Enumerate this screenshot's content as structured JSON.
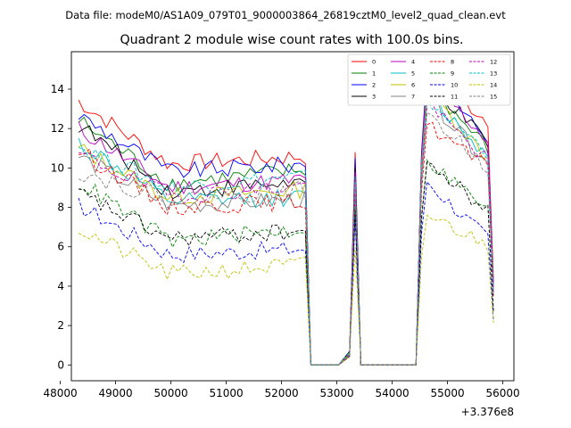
{
  "chart_data": {
    "type": "line",
    "suptitle": "Data file: modeM0/AS1A09_079T01_9000003864_26819cztM0_level2_quad_clean.evt",
    "title": "Quadrant 2 module wise count rates with 100.0s bins.",
    "xlabel": "",
    "ylabel": "",
    "x_offset_label": "+3.376e8",
    "xlim": [
      48200,
      56200
    ],
    "ylim": [
      -0.8,
      15.9
    ],
    "x_ticks": [
      48000,
      49000,
      50000,
      51000,
      52000,
      53000,
      54000,
      55000,
      56000
    ],
    "x_tick_labels": [
      "48000",
      "49000",
      "50000",
      "51000",
      "52000",
      "53000",
      "54000",
      "55000",
      "56000"
    ],
    "y_ticks": [
      0,
      2,
      4,
      6,
      8,
      10,
      12,
      14
    ],
    "y_tick_labels": [
      "0",
      "2",
      "4",
      "6",
      "8",
      "10",
      "12",
      "14"
    ],
    "legend_position": "upper right",
    "series": [
      {
        "name": "0",
        "color": "#ff0000",
        "dash": "solid",
        "start": 13.4,
        "level": 10.2,
        "end_level": 10.6,
        "spike": 10.8,
        "peak": 14.8,
        "tail": 12.4
      },
      {
        "name": "1",
        "color": "#008000",
        "dash": "solid",
        "start": 12.4,
        "level": 9.2,
        "end_level": 9.9,
        "spike": 9.0,
        "peak": 14.2,
        "tail": 11.0
      },
      {
        "name": "2",
        "color": "#0000ff",
        "dash": "solid",
        "start": 12.7,
        "level": 9.8,
        "end_level": 10.2,
        "spike": 10.5,
        "peak": 15.0,
        "tail": 11.5
      },
      {
        "name": "3",
        "color": "#000000",
        "dash": "solid",
        "start": 12.2,
        "level": 8.8,
        "end_level": 9.3,
        "spike": 10.0,
        "peak": 14.5,
        "tail": 11.2
      },
      {
        "name": "4",
        "color": "#bf00bf",
        "dash": "solid",
        "start": 12.0,
        "level": 9.0,
        "end_level": 9.4,
        "spike": 9.8,
        "peak": 14.6,
        "tail": 11.4
      },
      {
        "name": "5",
        "color": "#00bfbf",
        "dash": "solid",
        "start": 11.3,
        "level": 8.3,
        "end_level": 8.5,
        "spike": 9.2,
        "peak": 13.8,
        "tail": 10.6
      },
      {
        "name": "6",
        "color": "#bfbf00",
        "dash": "solid",
        "start": 11.0,
        "level": 8.5,
        "end_level": 8.9,
        "spike": 9.5,
        "peak": 14.0,
        "tail": 10.5
      },
      {
        "name": "7",
        "color": "#808080",
        "dash": "solid",
        "start": 10.6,
        "level": 8.1,
        "end_level": 8.4,
        "spike": 9.0,
        "peak": 13.6,
        "tail": 10.2
      },
      {
        "name": "8",
        "color": "#ff0000",
        "dash": "dashed",
        "start": 10.9,
        "level": 8.0,
        "end_level": 8.3,
        "spike": 8.8,
        "peak": 12.2,
        "tail": 10.0
      },
      {
        "name": "9",
        "color": "#008000",
        "dash": "dashed",
        "start": 9.3,
        "level": 6.3,
        "end_level": 6.9,
        "spike": 8.0,
        "peak": 10.4,
        "tail": 7.9
      },
      {
        "name": "10",
        "color": "#0000ff",
        "dash": "dashed",
        "start": 8.1,
        "level": 5.6,
        "end_level": 5.9,
        "spike": 7.5,
        "peak": 9.3,
        "tail": 6.4
      },
      {
        "name": "11",
        "color": "#000000",
        "dash": "dashed",
        "start": 8.7,
        "level": 6.4,
        "end_level": 6.8,
        "spike": 7.8,
        "peak": 10.3,
        "tail": 7.8
      },
      {
        "name": "12",
        "color": "#bf00bf",
        "dash": "dashed",
        "start": 10.7,
        "level": 8.6,
        "end_level": 9.1,
        "spike": 9.5,
        "peak": 13.2,
        "tail": 10.4
      },
      {
        "name": "13",
        "color": "#00bfbf",
        "dash": "dashed",
        "start": 11.1,
        "level": 9.0,
        "end_level": 9.6,
        "spike": 9.6,
        "peak": 13.5,
        "tail": 10.8
      },
      {
        "name": "14",
        "color": "#bfbf00",
        "dash": "dashed",
        "start": 6.9,
        "level": 4.6,
        "end_level": 5.1,
        "spike": 6.0,
        "peak": 7.6,
        "tail": 6.1
      },
      {
        "name": "15",
        "color": "#808080",
        "dash": "dashed",
        "start": 9.8,
        "level": 8.4,
        "end_level": 8.9,
        "spike": 9.2,
        "peak": 12.8,
        "tail": 10.0
      }
    ],
    "time_segments": {
      "first_good": [
        48330,
        52430
      ],
      "gap1": [
        52530,
        53030
      ],
      "spike_center": 53330,
      "gap2": [
        53430,
        54430
      ],
      "second_good": [
        54530,
        55730
      ],
      "last": 55830,
      "bin_width": 100
    }
  }
}
